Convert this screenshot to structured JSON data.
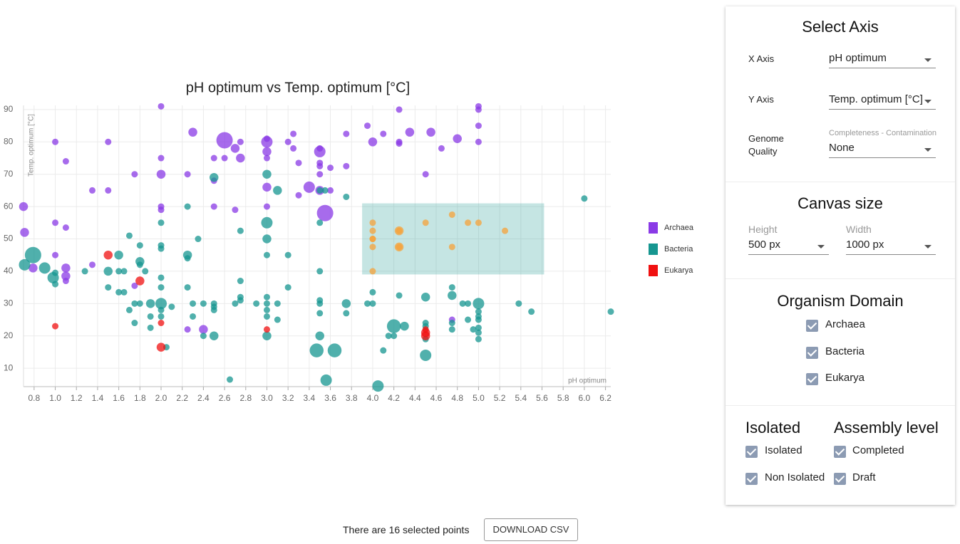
{
  "chart_data": {
    "type": "scatter",
    "title": "pH optimum vs Temp. optimum [°C]",
    "x_label": "pH optimum",
    "y_label": "Temp. optimum [°C]",
    "xlim": [
      0.7,
      6.25
    ],
    "ylim": [
      4.3,
      91.3
    ],
    "xticks": [
      0.8,
      {
        "value": 1,
        "label": "1.0"
      },
      1.2,
      1.4,
      1.6,
      1.8,
      {
        "value": 2,
        "label": "2.0"
      },
      2.2,
      2.4,
      2.6,
      2.8,
      {
        "value": 3,
        "label": "3.0"
      },
      3.2,
      3.4,
      3.6,
      3.8,
      {
        "value": 4,
        "label": "4.0"
      },
      4.2,
      4.4,
      4.6,
      4.8,
      {
        "value": 5,
        "label": "5.0"
      },
      5.2,
      5.4,
      5.6,
      5.8,
      {
        "value": 6,
        "label": "6.0"
      },
      6.2
    ],
    "yticks": [
      10,
      20,
      30,
      40,
      50,
      60,
      70,
      80,
      90
    ],
    "grid": true,
    "selection": {
      "xlim": [
        3.9,
        5.62
      ],
      "ylim": [
        39,
        61
      ],
      "color": "#169690",
      "point_color": "#f5a23a"
    },
    "series": [
      {
        "name": "Archaea",
        "color": "#8a3ae6",
        "x": [
          0.7,
          0.71,
          0.79,
          1.0,
          1.0,
          1.0,
          1.1,
          1.1,
          1.1,
          1.1,
          1.1,
          1.35,
          1.35,
          1.5,
          1.5,
          1.75,
          1.75,
          2.0,
          2.0,
          2.0,
          2.0,
          2.0,
          2.25,
          2.3,
          2.25,
          2.4,
          2.5,
          2.5,
          2.5,
          2.6,
          2.6,
          2.7,
          2.75,
          2.75,
          2.7,
          3.0,
          3.0,
          3.0,
          3.0,
          3.0,
          3.0,
          3.2,
          3.25,
          3.25,
          3.3,
          3.3,
          3.4,
          3.5,
          3.5,
          3.5,
          3.5,
          3.5,
          3.5,
          3.55,
          3.6,
          3.6,
          3.75,
          3.75,
          3.95,
          4.0,
          4.1,
          4.25,
          4.25,
          4.25,
          4.35,
          4.5,
          4.55,
          4.65,
          4.8,
          4.75,
          5.0,
          5.0,
          5.0,
          5.0
        ],
        "values": [
          60,
          52,
          41,
          80,
          55,
          45,
          74,
          53.5,
          41,
          38.5,
          37,
          42,
          65,
          80,
          65,
          70,
          35.5,
          91,
          75,
          70,
          60,
          59,
          70,
          83,
          22,
          22,
          75,
          68,
          60,
          75,
          80.5,
          78,
          80,
          75,
          59,
          81,
          80,
          77,
          75,
          66,
          60,
          80,
          82.5,
          78,
          73.5,
          63.5,
          66,
          78,
          77,
          73.5,
          72.5,
          70,
          65,
          58,
          72,
          65,
          82.5,
          72.5,
          85,
          80,
          82.5,
          90,
          80,
          79.5,
          83,
          70,
          83,
          78,
          81,
          25,
          91,
          90,
          85,
          80
        ],
        "sizes": [
          1.5,
          1.5,
          1.5,
          1,
          1,
          1,
          1,
          1,
          1.5,
          1.5,
          1,
          1,
          1,
          1,
          1,
          1,
          1,
          1,
          1,
          1.5,
          1,
          1,
          1,
          1.5,
          1,
          1.5,
          1,
          1,
          1,
          1,
          3,
          1.5,
          1,
          1.5,
          1,
          1,
          2,
          1.5,
          1,
          1.5,
          1,
          1,
          1,
          1,
          1,
          1,
          2,
          1,
          2,
          1,
          1,
          1,
          1.5,
          3,
          1,
          1,
          1,
          1,
          1,
          1.5,
          1,
          1,
          1,
          1,
          1.5,
          1,
          1.5,
          1,
          1.5,
          1,
          1,
          1,
          1,
          1
        ]
      },
      {
        "name": "Bacteria",
        "color": "#169690",
        "x": [
          0.71,
          0.79,
          0.9,
          0.98,
          1.0,
          1.0,
          1.28,
          1.5,
          1.5,
          1.6,
          1.6,
          1.6,
          1.65,
          1.65,
          1.7,
          1.7,
          1.75,
          1.75,
          1.8,
          1.8,
          1.8,
          1.8,
          1.85,
          1.9,
          1.9,
          1.9,
          2.0,
          2.0,
          2.0,
          2.0,
          2.0,
          2.0,
          2.0,
          2.0,
          2.05,
          2.1,
          2.25,
          2.25,
          2.25,
          2.25,
          2.3,
          2.3,
          2.35,
          2.4,
          2.4,
          2.5,
          2.5,
          2.5,
          2.5,
          2.5,
          2.65,
          2.7,
          2.75,
          2.75,
          2.75,
          2.75,
          2.9,
          3.0,
          3.0,
          3.0,
          3.0,
          3.0,
          3.0,
          3.0,
          3.0,
          3.0,
          3.1,
          3.1,
          3.1,
          3.2,
          3.2,
          3.47,
          3.5,
          3.5,
          3.5,
          3.5,
          3.5,
          3.5,
          3.5,
          3.55,
          3.56,
          3.64,
          3.75,
          3.75,
          3.75,
          3.95,
          4.0,
          4.0,
          4.05,
          4.1,
          4.15,
          4.2,
          4.2,
          4.25,
          4.3,
          4.5,
          4.5,
          4.5,
          4.5,
          4.5,
          4.75,
          4.75,
          4.75,
          4.75,
          4.85,
          4.9,
          4.9,
          4.95,
          5.0,
          5.0,
          5.0,
          5.0,
          5.0,
          5.0,
          5.0,
          5.38,
          5.5,
          6.0,
          6.25,
          4.0,
          4.0,
          4.0,
          4.0,
          4.0,
          4.25,
          4.25,
          4.5,
          4.75,
          4.75,
          4.9,
          5.0,
          5.25,
          4.0,
          4.25,
          4.25
        ],
        "values": [
          42,
          45,
          41,
          38,
          39.5,
          36,
          40,
          40,
          35,
          45,
          40,
          33.5,
          40,
          33.5,
          51,
          28,
          30,
          24,
          48,
          43,
          42,
          30,
          40,
          30,
          26,
          22.5,
          55,
          48,
          47,
          38,
          35,
          30,
          28,
          26,
          16.5,
          29,
          60,
          45,
          44,
          35,
          30,
          26,
          50,
          30,
          20,
          69,
          30,
          29,
          28,
          20,
          6.5,
          30,
          52.5,
          37,
          32,
          31,
          30,
          70,
          55,
          50,
          45,
          32,
          30,
          28,
          26,
          20,
          65,
          30,
          25,
          45,
          35,
          15.5,
          40,
          31,
          30,
          27,
          20,
          55,
          65,
          65,
          6.3,
          15.5,
          63,
          30,
          27,
          30,
          30,
          33.5,
          4.5,
          15.5,
          20,
          20,
          23,
          32.5,
          23,
          32,
          14,
          24,
          23,
          19,
          35,
          32.5,
          24,
          22,
          30,
          30,
          25,
          22,
          30,
          27.5,
          26,
          25,
          22.5,
          21,
          19,
          30,
          27.5,
          62.5,
          27.5,
          55,
          52.5,
          50,
          47.5,
          40,
          52.5,
          47.5,
          55,
          57.5,
          47.5,
          55,
          55,
          52.5,
          50,
          52.5,
          47.5
        ],
        "sizes": [
          2,
          3,
          2,
          2,
          1,
          1,
          1,
          1.5,
          1,
          1.5,
          1,
          1,
          1,
          1,
          1,
          1,
          1,
          1,
          1,
          1.5,
          1,
          1,
          1,
          1.5,
          1,
          1,
          1,
          1,
          1,
          1,
          1,
          2,
          1,
          1,
          1,
          1,
          1,
          1.5,
          1,
          1,
          1,
          1,
          1,
          1,
          1,
          1.5,
          1,
          1,
          1,
          1.5,
          1,
          1,
          1,
          1,
          1,
          1,
          1,
          1.5,
          2,
          1.5,
          1,
          1,
          1,
          1,
          1,
          1.5,
          1.5,
          1,
          1,
          1,
          1,
          2.5,
          1,
          1,
          1,
          1,
          1.5,
          1,
          1,
          1,
          2,
          2.5,
          1,
          1.5,
          1,
          1,
          1,
          1,
          2,
          1,
          1,
          1,
          2.5,
          1,
          1.5,
          1.5,
          2,
          1,
          1,
          1,
          1,
          1.5,
          1,
          1,
          1,
          1,
          1,
          1,
          2,
          1,
          1,
          1,
          1,
          1,
          1,
          1,
          1,
          1,
          1,
          1,
          1,
          1,
          1,
          1,
          1.5,
          1.5,
          1,
          1,
          1,
          1,
          1,
          1,
          1,
          1,
          1
        ]
      },
      {
        "name": "Eukarya",
        "color": "#f01010",
        "x": [
          1.5,
          1.8,
          1.0,
          2.0,
          2.0,
          3.0,
          4.5,
          4.5,
          4.5
        ],
        "values": [
          45,
          37,
          23,
          24,
          16.5,
          22,
          21,
          20,
          22
        ],
        "sizes": [
          1.5,
          1.5,
          1,
          1,
          1.5,
          1,
          1.5,
          1.5,
          1
        ]
      }
    ]
  },
  "panel": {
    "axis_section": {
      "title": "Select Axis",
      "x_label": "X Axis",
      "x_value": "pH optimum",
      "y_label": "Y Axis",
      "y_value": "Temp. optimum [°C]",
      "quality_label": "Genome Quality",
      "quality_hint": "Completeness - Contamination",
      "quality_value": "None"
    },
    "canvas_section": {
      "title": "Canvas size",
      "height_label": "Height",
      "height_value": "500 px",
      "width_label": "Width",
      "width_value": "1000 px"
    },
    "domain_section": {
      "title": "Organism Domain",
      "options": [
        "Archaea",
        "Bacteria",
        "Eukarya"
      ]
    },
    "isolated_section": {
      "title": "Isolated",
      "options": [
        "Isolated",
        "Non Isolated"
      ]
    },
    "assembly_section": {
      "title": "Assembly level",
      "options": [
        "Completed",
        "Draft"
      ]
    }
  },
  "footer": {
    "selected_text": "There are 16 selected points",
    "button": "DOWNLOAD CSV"
  }
}
